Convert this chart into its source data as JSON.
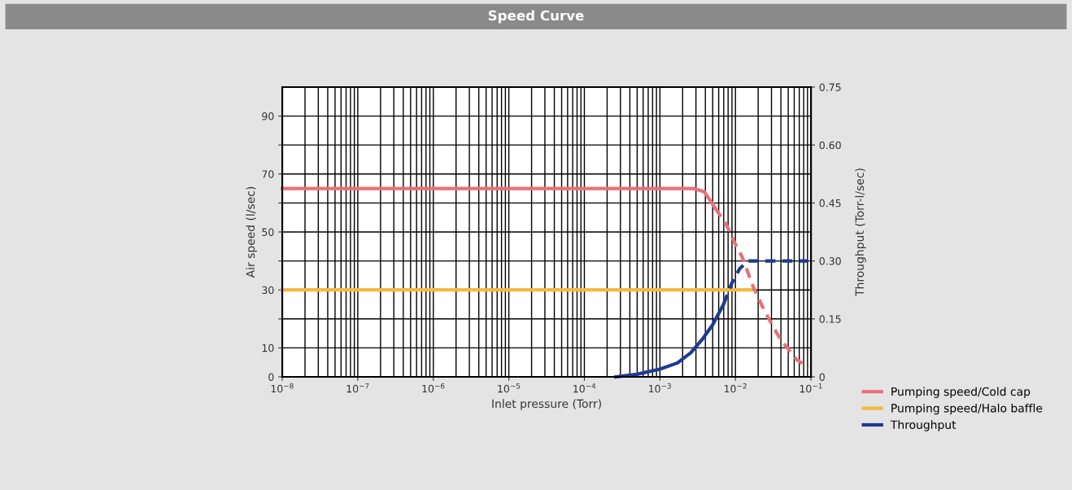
{
  "chart_data": {
    "type": "line",
    "title": "Speed Curve",
    "xlabel": "Inlet pressure (Torr)",
    "ylabel": "Air speed (l/sec)",
    "y2label": "Throughput (Torr-l/sec)",
    "log": "x",
    "grid": true,
    "legend": "bottom right",
    "marker": "none",
    "xlim": [
      1e-08,
      0.1
    ],
    "xticks": [
      {
        "value": 1e-08,
        "label": "10$^{−8}$"
      },
      {
        "value": 1e-07,
        "label": "10$^{−7}$"
      },
      {
        "value": 1e-06,
        "label": "10$^{−6}$"
      },
      {
        "value": 1e-05,
        "label": "10$^{−5}$"
      },
      {
        "value": 0.0001,
        "label": "10$^{−4}$"
      },
      {
        "value": 0.001,
        "label": "10$^{−3}$"
      },
      {
        "value": 0.01,
        "label": "10$^{−2}$"
      },
      {
        "value": 0.1,
        "label": "10$^{−1}$"
      }
    ],
    "ylim": [
      0,
      100
    ],
    "yticks": [
      0,
      10,
      {
        "value": 20,
        "label": null
      },
      30,
      {
        "value": 40,
        "label": null
      },
      50,
      {
        "value": 60,
        "label": null
      },
      70,
      {
        "value": 80,
        "label": null
      },
      90
    ],
    "y2lim": [
      0,
      0.75
    ],
    "y2ticks": [
      0,
      0.15,
      {
        "value": 0.3,
        "label": "0.30"
      },
      0.45,
      {
        "value": 0.6,
        "label": "0.60"
      },
      0.75
    ],
    "series": [
      {
        "name": "Pumping speed/Cold cap",
        "color": "#e8707a",
        "line_style": "solid",
        "x": [
          1e-08,
          0.0028,
          0.0039,
          0.0054
        ],
        "values": [
          65,
          65,
          63.8,
          58.2
        ]
      },
      {
        "color": "#e8707a",
        "line_style": "dashed",
        "x": [
          0.0054,
          0.0075,
          0.0097,
          0.0124,
          0.0172,
          0.024,
          0.039,
          0.065,
          0.093
        ],
        "values": [
          58.2,
          52.8,
          46.5,
          41.1,
          31.1,
          23.0,
          13.1,
          5.9,
          3.2
        ]
      },
      {
        "name": "Pumping speed/Halo baffle",
        "color": "#f5b942",
        "line_style": "solid",
        "x": [
          1e-08,
          0.016
        ],
        "values": [
          30,
          30
        ]
      },
      {
        "name": "Throughput",
        "color": "#1f3a93",
        "line_style": "solid",
        "axis": "y2",
        "x": [
          0.00026,
          0.000495,
          0.001,
          0.00171,
          0.00258,
          0.0036,
          0.005,
          0.00696
        ],
        "values": [
          0,
          0.0066,
          0.02,
          0.036,
          0.063,
          0.096,
          0.135,
          0.188
        ]
      },
      {
        "color": "#1f3a93",
        "line_style": "dashed",
        "axis": "y2",
        "x": [
          0.00696,
          0.0089,
          0.0114,
          0.0146,
          0.09
        ],
        "values": [
          0.188,
          0.241,
          0.28,
          0.3,
          0.3
        ]
      }
    ]
  }
}
